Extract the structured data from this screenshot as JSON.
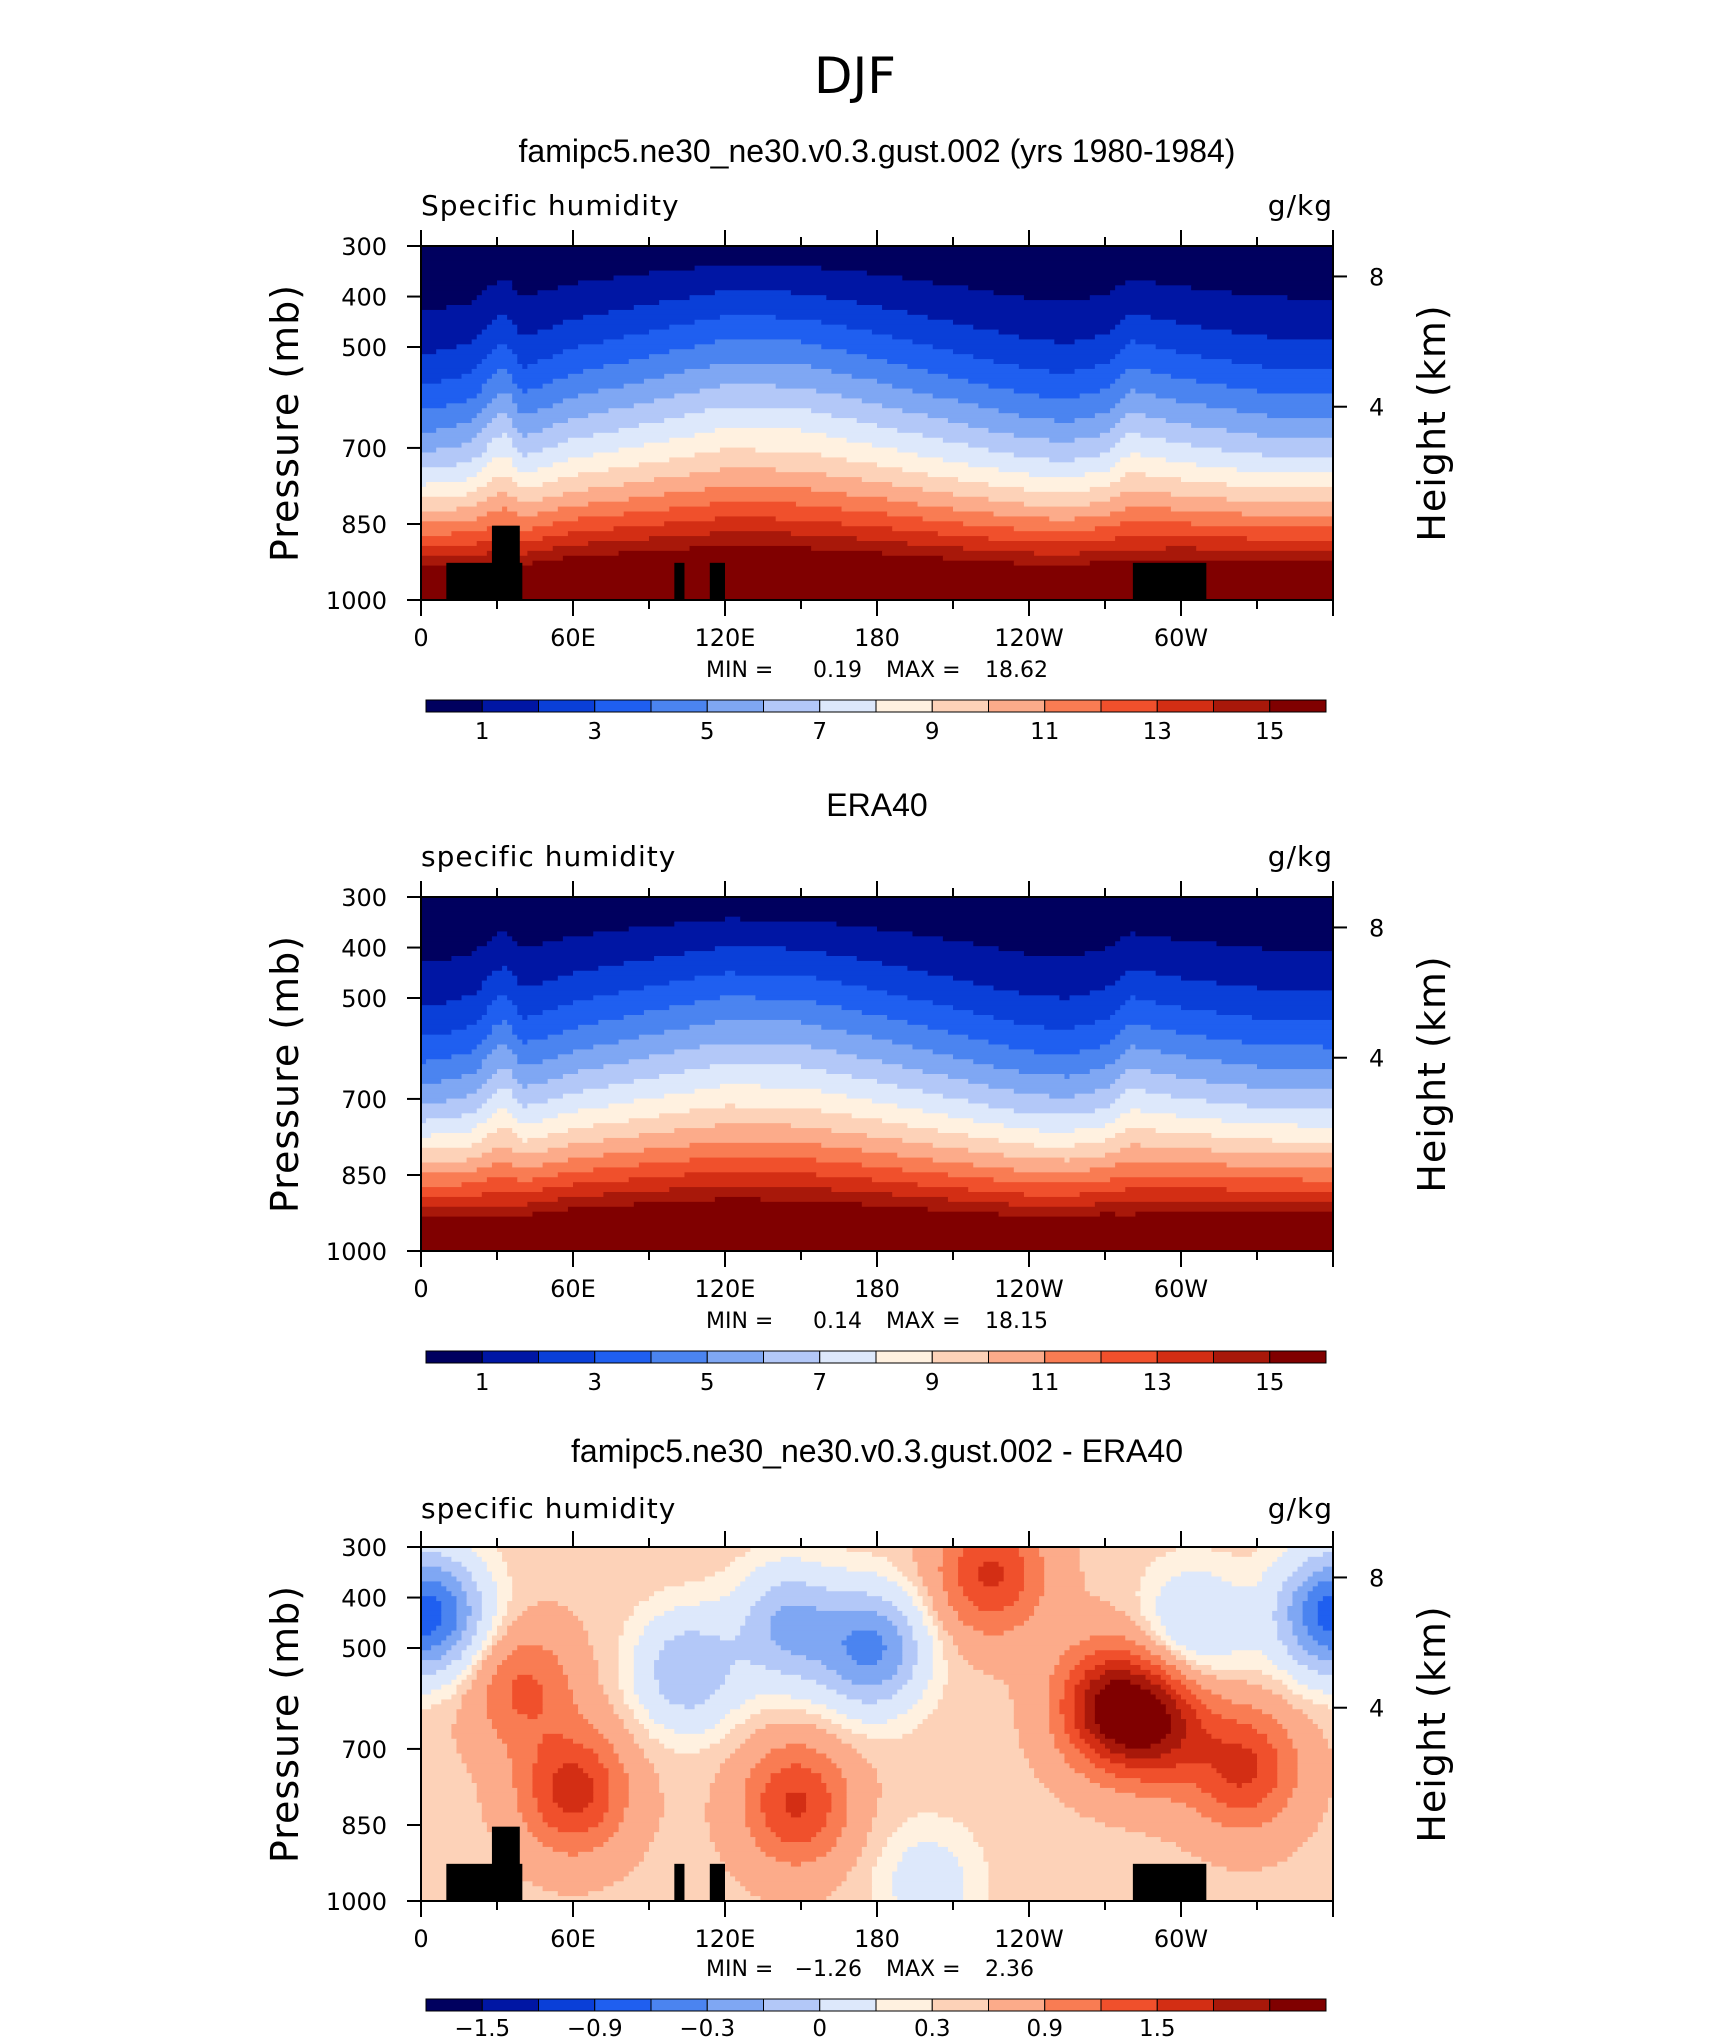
{
  "figure": {
    "title": "DJF"
  },
  "chart_data": [
    {
      "type": "heatmap",
      "title": "famipc5.ne30_ne30.v0.3.gust.002 (yrs 1980-1984)",
      "left_label": "Specific humidity",
      "right_label": "g/kg",
      "ylabel": "Pressure (mb)",
      "ylabel_right": "Height (km)",
      "x_ticks": [
        "0",
        "60E",
        "120E",
        "180",
        "120W",
        "60W"
      ],
      "x_range": [
        0,
        360
      ],
      "y_ticks": [
        "300",
        "400",
        "500",
        "700",
        "850",
        "1000"
      ],
      "y_range": [
        1000,
        300
      ],
      "y_scale": "log",
      "y_right_ticks": [
        "8",
        "4"
      ],
      "min_label": "MIN =",
      "min_value": "0.19",
      "max_label": "MAX =",
      "max_value": "18.62",
      "colorbar": {
        "levels": [
          1,
          2,
          3,
          4,
          5,
          6,
          7,
          8,
          9,
          10,
          11,
          12,
          13,
          14,
          15,
          16
        ],
        "tick_labels": [
          "1",
          "3",
          "5",
          "7",
          "9",
          "11",
          "13",
          "15"
        ]
      },
      "model": {
        "ridge_lon": [
          0,
          10,
          20,
          30,
          34,
          40,
          60,
          90,
          120,
          150,
          180,
          210,
          240,
          255,
          270,
          280,
          300,
          335,
          360
        ],
        "ridge_level": [
          1.95,
          1.88,
          1.78,
          1.42,
          1.4,
          1.7,
          1.46,
          1.28,
          1.12,
          1.14,
          1.3,
          1.5,
          1.72,
          1.78,
          1.66,
          1.38,
          1.52,
          1.7,
          1.72
        ],
        "surface_shift": [
          0.05,
          0.08,
          0.12,
          0.2,
          0.22,
          0.12,
          0.04,
          0.02,
          0.0,
          0.02,
          0.04,
          0.08,
          0.1,
          0.1,
          0.08,
          0.18,
          0.08,
          0.05,
          0.05
        ]
      },
      "mask": true
    },
    {
      "type": "heatmap",
      "title": "ERA40",
      "left_label": "specific humidity",
      "right_label": "g/kg",
      "ylabel": "Pressure (mb)",
      "ylabel_right": "Height (km)",
      "x_ticks": [
        "0",
        "60E",
        "120E",
        "180",
        "120W",
        "60W"
      ],
      "x_range": [
        0,
        360
      ],
      "y_ticks": [
        "300",
        "400",
        "500",
        "700",
        "850",
        "1000"
      ],
      "y_range": [
        1000,
        300
      ],
      "y_scale": "log",
      "y_right_ticks": [
        "8",
        "4"
      ],
      "min_label": "MIN =",
      "min_value": "0.14",
      "max_label": "MAX =",
      "max_value": "18.15",
      "colorbar": {
        "levels": [
          1,
          2,
          3,
          4,
          5,
          6,
          7,
          8,
          9,
          10,
          11,
          12,
          13,
          14,
          15,
          16
        ],
        "tick_labels": [
          "1",
          "3",
          "5",
          "7",
          "9",
          "11",
          "13",
          "15"
        ]
      },
      "model": {
        "ridge_lon": [
          0,
          10,
          20,
          30,
          34,
          40,
          60,
          90,
          120,
          150,
          180,
          210,
          240,
          255,
          270,
          280,
          300,
          335,
          360
        ],
        "ridge_level": [
          1.96,
          1.9,
          1.8,
          1.45,
          1.42,
          1.7,
          1.5,
          1.32,
          1.18,
          1.2,
          1.36,
          1.56,
          1.8,
          1.84,
          1.72,
          1.44,
          1.56,
          1.72,
          1.74
        ],
        "surface_shift": [
          0.05,
          0.08,
          0.12,
          0.22,
          0.24,
          0.12,
          0.04,
          0.02,
          0.0,
          0.02,
          0.04,
          0.08,
          0.1,
          0.1,
          0.08,
          0.18,
          0.08,
          0.05,
          0.05
        ]
      },
      "mask": false
    },
    {
      "type": "heatmap",
      "title": "famipc5.ne30_ne30.v0.3.gust.002 - ERA40",
      "left_label": "specific humidity",
      "right_label": "g/kg",
      "ylabel": "Pressure (mb)",
      "ylabel_right": "Height (km)",
      "x_ticks": [
        "0",
        "60E",
        "120E",
        "180",
        "120W",
        "60W"
      ],
      "x_range": [
        0,
        360
      ],
      "y_ticks": [
        "300",
        "400",
        "500",
        "700",
        "850",
        "1000"
      ],
      "y_range": [
        1000,
        300
      ],
      "y_scale": "log",
      "y_right_ticks": [
        "8",
        "4"
      ],
      "min_label": "MIN =",
      "min_value": "−1.26",
      "max_label": "MAX =",
      "max_value": "2.36",
      "colorbar": {
        "levels": [
          -2.1,
          -1.8,
          -1.5,
          -1.2,
          -0.9,
          -0.6,
          -0.3,
          0,
          0.15,
          0.3,
          0.6,
          0.9,
          1.2,
          1.5,
          1.8,
          2.1
        ],
        "tick_labels": [
          "−1.5",
          "−0.9",
          "−0.3",
          "0",
          "0.3",
          "0.9",
          "1.5"
        ]
      },
      "anomalies": [
        {
          "lon": 8,
          "level": 1.62,
          "amp": -0.9
        },
        {
          "lon": 60,
          "level": 0.62,
          "amp": 1.1
        },
        {
          "lon": 40,
          "level": 1.2,
          "amp": 0.7
        },
        {
          "lon": 105,
          "level": 1.3,
          "amp": -0.8
        },
        {
          "lon": 148,
          "level": 0.55,
          "amp": 1.0
        },
        {
          "lon": 178,
          "level": 1.42,
          "amp": -1.2
        },
        {
          "lon": 145,
          "level": 1.55,
          "amp": -0.9
        },
        {
          "lon": 272,
          "level": 1.1,
          "amp": 1.5
        },
        {
          "lon": 292,
          "level": 1.0,
          "amp": 1.2
        },
        {
          "lon": 305,
          "level": 1.55,
          "amp": -0.6
        },
        {
          "lon": 325,
          "level": 0.75,
          "amp": 1.0
        },
        {
          "lon": 355,
          "level": 1.62,
          "amp": -0.9
        },
        {
          "lon": 225,
          "level": 1.85,
          "amp": 1.0
        },
        {
          "lon": 200,
          "level": 0.1,
          "amp": -0.4
        }
      ],
      "mask": true
    }
  ],
  "colors": {
    "palette": [
      "#00005f",
      "#0016a4",
      "#0a3fd8",
      "#1f5ff0",
      "#4b84f0",
      "#7fa7f3",
      "#b3c8f8",
      "#dde8fb",
      "#fff1e0",
      "#fdd2b8",
      "#fcab8a",
      "#f97c53",
      "#f0502c",
      "#d32e14",
      "#a8180a",
      "#800000"
    ],
    "mask": "#000000"
  }
}
